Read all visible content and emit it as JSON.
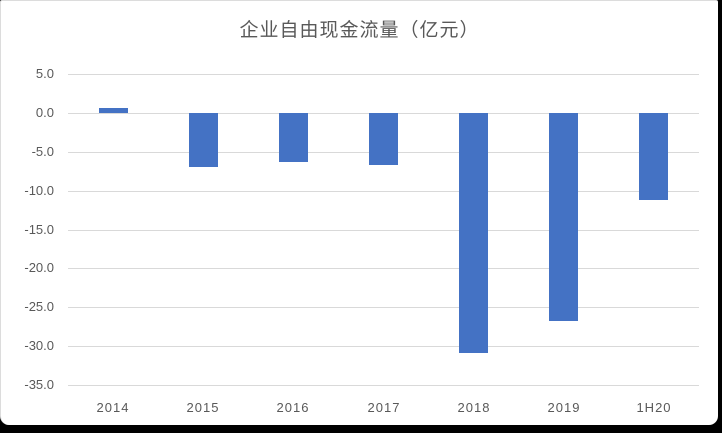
{
  "chart_data": {
    "type": "bar",
    "title": "企业自由现金流量（亿元）",
    "categories": [
      "2014",
      "2015",
      "2016",
      "2017",
      "2018",
      "2019",
      "1H20"
    ],
    "values": [
      0.6,
      -7.0,
      -6.3,
      -6.7,
      -30.9,
      -26.7,
      -11.2
    ],
    "xlabel": "",
    "ylabel": "",
    "ylim": [
      -35,
      5
    ],
    "ytick_step": 5,
    "ytick_labels": [
      "5.0",
      "0.0",
      "-5.0",
      "-10.0",
      "-15.0",
      "-20.0",
      "-25.0",
      "-30.0",
      "-35.0"
    ],
    "grid": true,
    "legend": "none",
    "bar_color": "#4472C4",
    "gridline_color": "#D9D9D9",
    "label_color": "#595959",
    "title_color": "#595959"
  }
}
